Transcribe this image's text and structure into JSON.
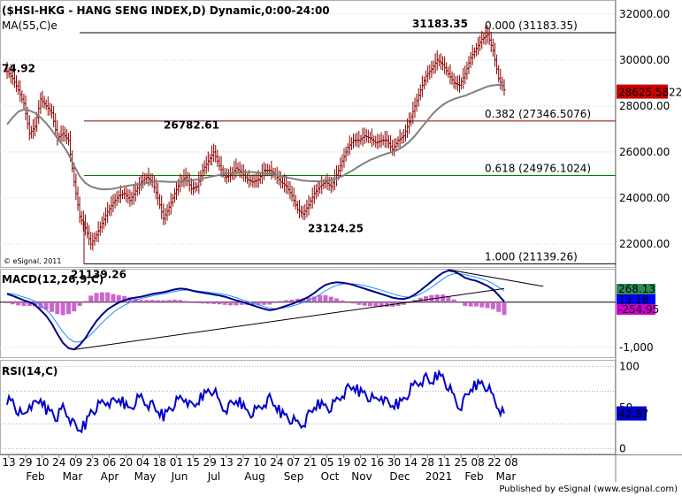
{
  "chart_data": [
    {
      "type": "line",
      "panel": "price",
      "title": "($HSI-HKG - HANG SENG INDEX,D) Dynamic,0:00-24:00",
      "overlay_label": "MA(55,C)e",
      "copyright": "© eSignal, 2011",
      "ylim": [
        21000,
        32300
      ],
      "y_ticks": [
        22000,
        24000,
        26000,
        28000,
        30000,
        32000
      ],
      "y_tick_labels": [
        "22000.00",
        "24000.00",
        "26000.00",
        "28000.00",
        "30000.00",
        "32000.00"
      ],
      "last_value": 28625.58,
      "last_value_label": "28625.58",
      "last_value_suffix": "22",
      "series": [
        {
          "name": "HSI (approx closes)",
          "values": [
            29500,
            29200,
            28700,
            28100,
            26800,
            27100,
            28300,
            28000,
            27700,
            26600,
            26800,
            26500,
            24700,
            23200,
            22700,
            22000,
            22400,
            22900,
            23400,
            23800,
            24100,
            24200,
            23900,
            24300,
            24700,
            24900,
            24700,
            24000,
            23100,
            23600,
            24200,
            24700,
            24900,
            24400,
            24500,
            25200,
            25600,
            26000,
            25400,
            24900,
            25000,
            25300,
            25100,
            24800,
            24700,
            24800,
            25200,
            25200,
            25000,
            24700,
            24500,
            24100,
            23500,
            23300,
            23700,
            24200,
            24500,
            24700,
            24500,
            25000,
            25600,
            26200,
            26500,
            26500,
            26700,
            26600,
            26400,
            26500,
            26500,
            26100,
            26500,
            26700,
            27300,
            28000,
            28700,
            29300,
            29600,
            30000,
            29800,
            29400,
            29000,
            28900,
            29400,
            30100,
            30500,
            30900,
            31100,
            30400,
            29200,
            28700
          ]
        },
        {
          "name": "MA(55,C)e",
          "values": [
            27200,
            27500,
            27750,
            27850,
            27800,
            27700,
            27500,
            27250,
            26950,
            26600,
            26300,
            25900,
            25400,
            24950,
            24650,
            24500,
            24420,
            24380,
            24380,
            24400,
            24450,
            24500,
            24550,
            24580,
            24600,
            24650,
            24700,
            24720,
            24720,
            24700,
            24700,
            24720,
            24750,
            24780,
            24800,
            24850,
            24900,
            24950,
            25000,
            25050,
            25080,
            25100,
            25120,
            25130,
            25120,
            25100,
            25080,
            25050,
            25000,
            24950,
            24900,
            24850,
            24800,
            24760,
            24740,
            24730,
            24730,
            24750,
            24780,
            24850,
            24950,
            25080,
            25220,
            25380,
            25520,
            25650,
            25750,
            25850,
            25930,
            26000,
            26100,
            26250,
            26450,
            26700,
            27000,
            27300,
            27600,
            27850,
            28050,
            28200,
            28300,
            28380,
            28450,
            28550,
            28650,
            28750,
            28850,
            28900,
            28920,
            28900
          ]
        }
      ],
      "annotations": [
        {
          "label": "74.92",
          "value": 29250
        },
        {
          "label": "21139.26",
          "value": 21139.26
        },
        {
          "label": "26782.61",
          "value": 26782.61
        },
        {
          "label": "23124.25",
          "value": 23124.25
        },
        {
          "label": "31183.35",
          "value": 31183.35
        }
      ],
      "fib_levels": [
        {
          "label": "0.000 (31183.35)",
          "value": 31183.35,
          "color": "#000000"
        },
        {
          "label": "0.382 (27346.5076)",
          "value": 27346.5076,
          "color": "#8b0000"
        },
        {
          "label": "0.618 (24976.1024)",
          "value": 24976.1024,
          "color": "#008000"
        },
        {
          "label": "1.000 (21139.26)",
          "value": 21139.26,
          "color": "#000000"
        }
      ]
    },
    {
      "type": "line",
      "panel": "macd",
      "title": "MACD(12,26,9,C)",
      "ylim": [
        -1200,
        700
      ],
      "y_ticks": [
        -1000
      ],
      "y_tick_labels": [
        "-1,000"
      ],
      "value_labels": [
        {
          "label": "268.13",
          "value": 268.13,
          "color": "#2e8b57"
        },
        {
          "label": "13.18",
          "value": 13.18,
          "color": "#0000ff"
        },
        {
          "label": "-254.95",
          "value": -254.95,
          "color": "#cc00cc"
        }
      ],
      "series": [
        {
          "name": "MACD",
          "values": [
            180,
            140,
            90,
            40,
            0,
            -60,
            -180,
            -300,
            -480,
            -700,
            -900,
            -1020,
            -1050,
            -950,
            -800,
            -600,
            -420,
            -280,
            -160,
            -80,
            -10,
            40,
            80,
            100,
            120,
            150,
            180,
            200,
            220,
            250,
            280,
            300,
            290,
            260,
            230,
            210,
            190,
            170,
            150,
            120,
            80,
            40,
            10,
            -30,
            -70,
            -110,
            -150,
            -180,
            -160,
            -120,
            -80,
            -40,
            10,
            60,
            120,
            200,
            300,
            380,
            420,
            440,
            430,
            410,
            380,
            340,
            300,
            260,
            220,
            180,
            140,
            100,
            80,
            70,
            100,
            170,
            260,
            360,
            460,
            560,
            650,
            700,
            680,
            620,
            540,
            500,
            470,
            420,
            360,
            280,
            150,
            13
          ]
        },
        {
          "name": "Signal",
          "values": [
            200,
            180,
            150,
            110,
            70,
            20,
            -60,
            -160,
            -300,
            -480,
            -660,
            -800,
            -880,
            -880,
            -820,
            -720,
            -590,
            -460,
            -340,
            -230,
            -140,
            -70,
            -10,
            40,
            80,
            110,
            140,
            165,
            185,
            210,
            235,
            260,
            270,
            265,
            250,
            235,
            220,
            205,
            190,
            170,
            140,
            100,
            60,
            20,
            -20,
            -60,
            -100,
            -135,
            -150,
            -140,
            -115,
            -85,
            -50,
            -10,
            40,
            100,
            170,
            250,
            320,
            370,
            400,
            410,
            405,
            390,
            365,
            335,
            300,
            265,
            225,
            185,
            150,
            120,
            110,
            130,
            180,
            250,
            330,
            420,
            510,
            590,
            630,
            630,
            610,
            580,
            550,
            515,
            470,
            410,
            330,
            250
          ]
        }
      ],
      "trendlines": [
        {
          "name": "MACD support line",
          "from_index": 12,
          "from_value": -1050,
          "to_index": 89,
          "to_value": 300
        },
        {
          "name": "MACD divergence line",
          "from_index": 79,
          "from_value": 720,
          "to_index": 96,
          "to_value": 350
        }
      ]
    },
    {
      "type": "line",
      "panel": "rsi",
      "title": "RSI(14,C)",
      "ylim": [
        -5,
        105
      ],
      "y_ticks": [
        0,
        50,
        100
      ],
      "y_tick_labels": [
        "0",
        "50",
        "100"
      ],
      "last_value_label": "42.87",
      "last_value": 42.87,
      "series": [
        {
          "name": "RSI",
          "values": [
            60,
            58,
            45,
            38,
            55,
            52,
            60,
            48,
            45,
            38,
            50,
            40,
            28,
            22,
            30,
            45,
            50,
            55,
            58,
            55,
            60,
            55,
            48,
            58,
            62,
            55,
            52,
            45,
            40,
            48,
            55,
            60,
            62,
            50,
            55,
            65,
            70,
            72,
            55,
            48,
            52,
            58,
            55,
            45,
            44,
            48,
            55,
            60,
            52,
            44,
            40,
            35,
            30,
            30,
            40,
            50,
            55,
            52,
            50,
            58,
            66,
            72,
            75,
            70,
            68,
            62,
            58,
            65,
            55,
            52,
            55,
            60,
            70,
            78,
            82,
            85,
            80,
            90,
            88,
            75,
            62,
            50,
            60,
            72,
            78,
            80,
            75,
            62,
            50,
            43
          ]
        }
      ]
    }
  ],
  "x_axis": {
    "day_labels": [
      "13",
      "29",
      "10",
      "24",
      "09",
      "23",
      "06",
      "20",
      "04",
      "18",
      "01",
      "15",
      "29",
      "13",
      "27",
      "10",
      "24",
      "07",
      "21",
      "05",
      "19",
      "02",
      "16",
      "30",
      "14",
      "28",
      "11",
      "25",
      "08",
      "22",
      "08"
    ],
    "month_labels": [
      "Feb",
      "Mar",
      "Apr",
      "May",
      "Jun",
      "Jul",
      "Aug",
      "Sep",
      "Oct",
      "Nov",
      "Dec",
      "2021",
      "Feb",
      "Mar"
    ]
  },
  "footer": {
    "published": "Published by eSignal (www.esignal.com)"
  },
  "colors": {
    "price_bars": "#8b0000",
    "ma_line": "#808080",
    "macd_line": "#00008b",
    "signal_line": "#1e90ff",
    "histogram": "#cc66cc",
    "rsi_line": "#0000cc",
    "last_price_bg": "#cc0000",
    "rsi_tag_bg": "#0000cc"
  }
}
